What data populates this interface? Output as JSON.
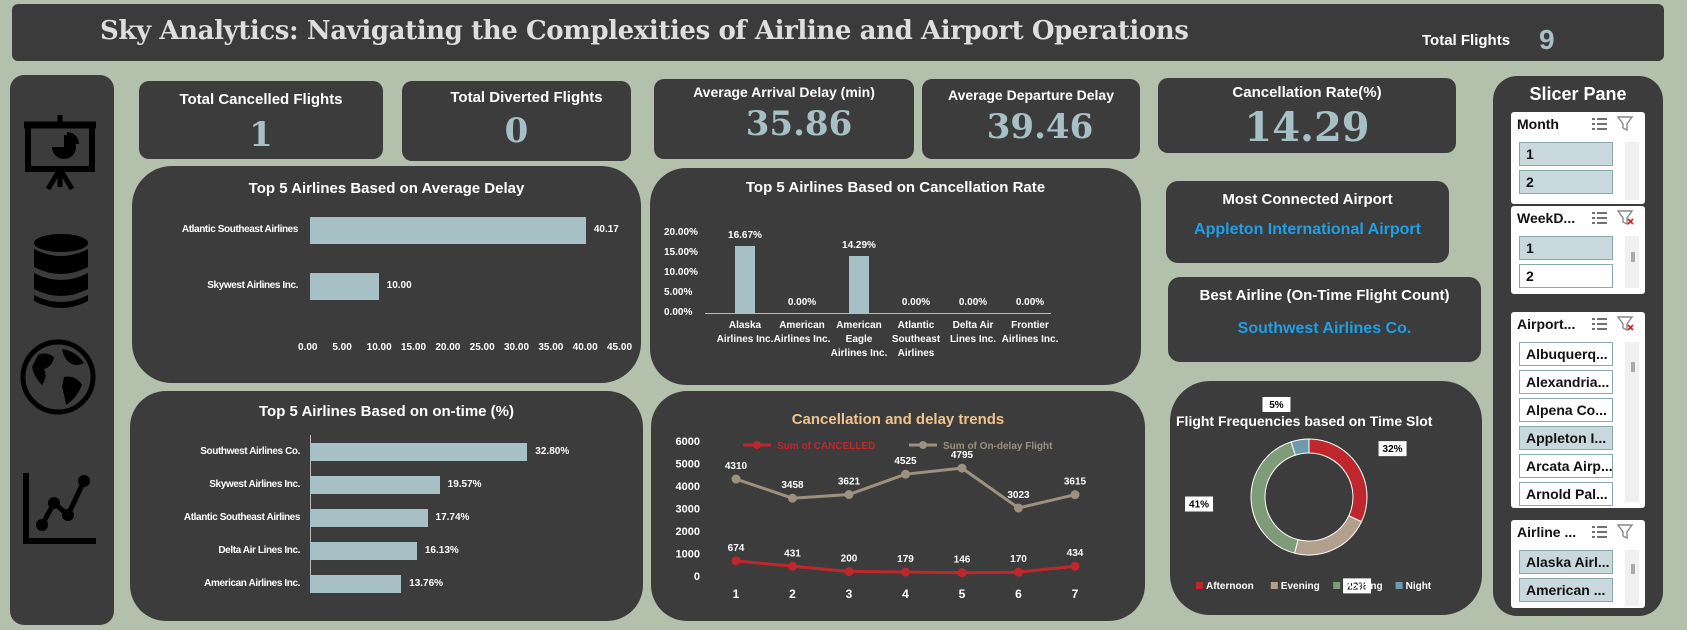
{
  "header": {
    "title": "Sky Analytics: Navigating the Complexities of Airline and Airport Operations",
    "total_flights_label": "Total Flights",
    "total_flights_value": "9"
  },
  "nav": {
    "icons": [
      "presentation-chart-icon",
      "database-icon",
      "globe-icon",
      "line-chart-icon"
    ]
  },
  "kpis": {
    "cancelled": {
      "label": "Total Cancelled Flights",
      "value": "1"
    },
    "diverted": {
      "label": "Total Diverted Flights",
      "value": "0"
    },
    "arrival_delay": {
      "label": "Average Arrival Delay (min)",
      "value": "35.86"
    },
    "departure_delay": {
      "label": "Average Departure Delay",
      "value": "39.46"
    },
    "cancellation_rate": {
      "label": "Cancellation Rate(%)",
      "value": "14.29"
    }
  },
  "cards": {
    "most_connected": {
      "label": "Most Connected Airport",
      "value": "Appleton International Airport"
    },
    "best_airline": {
      "label": "Best Airline (On-Time Flight Count)",
      "value": "Southwest Airlines Co."
    }
  },
  "slicer_pane": {
    "title": "Slicer Pane",
    "slicers": [
      {
        "title": "Month",
        "items": [
          "1",
          "2"
        ]
      },
      {
        "title": "WeekD...",
        "items": [
          "1",
          "2"
        ]
      },
      {
        "title": "Airport...",
        "items": [
          "Albuquerq...",
          "Alexandria...",
          "Alpena Co...",
          "Appleton I...",
          "Arcata Airp...",
          "Arnold Pal..."
        ]
      },
      {
        "title": "Airline ...",
        "items": [
          "Alaska Airl...",
          "American ..."
        ]
      }
    ]
  },
  "chart_data": [
    {
      "type": "bar",
      "orientation": "horizontal",
      "title": "Top 5 Airlines Based on Average Delay",
      "categories": [
        "Atlantic Southeast Airlines",
        "Skywest Airlines Inc."
      ],
      "values": [
        40.17,
        10.0
      ],
      "value_labels": [
        "40.17",
        "10.00"
      ],
      "xlim": [
        0,
        45
      ],
      "x_ticks": [
        "0.00",
        "5.00",
        "10.00",
        "15.00",
        "20.00",
        "25.00",
        "30.00",
        "35.00",
        "40.00",
        "45.00"
      ],
      "color": "#a6c0c6"
    },
    {
      "type": "bar",
      "title": "Top 5 Airlines Based on Cancellation Rate",
      "categories": [
        "Alaska Airlines Inc.",
        "American Airlines Inc.",
        "American Eagle Airlines Inc.",
        "Atlantic Southeast Airlines",
        "Delta Air Lines Inc.",
        "Frontier Airlines Inc."
      ],
      "values": [
        16.67,
        0,
        14.29,
        0,
        0,
        0
      ],
      "value_labels": [
        "16.67%",
        "0.00%",
        "14.29%",
        "0.00%",
        "0.00%",
        "0.00%"
      ],
      "ylim": [
        0,
        20
      ],
      "y_ticks": [
        "0.00%",
        "5.00%",
        "10.00%",
        "15.00%",
        "20.00%"
      ],
      "color": "#a6c0c6"
    },
    {
      "type": "bar",
      "orientation": "horizontal",
      "title": "Top 5 Airlines Based on on-time (%)",
      "categories": [
        "Southwest Airlines Co.",
        "Skywest Airlines Inc.",
        "Atlantic Southeast Airlines",
        "Delta Air Lines Inc.",
        "American Airlines Inc."
      ],
      "values": [
        32.8,
        19.57,
        17.74,
        16.13,
        13.76
      ],
      "value_labels": [
        "32.80%",
        "19.57%",
        "17.74%",
        "16.13%",
        "13.76%"
      ],
      "xlim": [
        0,
        40
      ],
      "color": "#a6c0c6"
    },
    {
      "type": "line",
      "title": "Cancellation and delay trends",
      "x": [
        "1",
        "2",
        "3",
        "4",
        "5",
        "6",
        "7"
      ],
      "ylim": [
        0,
        6000
      ],
      "y_ticks": [
        "0",
        "1000",
        "2000",
        "3000",
        "4000",
        "5000",
        "6000"
      ],
      "series": [
        {
          "name": "Sum of CANCELLED",
          "values": [
            674,
            431,
            200,
            179,
            146,
            170,
            434
          ],
          "color": "#c0272d"
        },
        {
          "name": "Sum of On-delay Flight",
          "values": [
            4310,
            3458,
            3621,
            4525,
            4795,
            3023,
            3615
          ],
          "color": "#9c907e"
        }
      ],
      "legend": "top"
    },
    {
      "type": "pie",
      "donut": true,
      "title": "Flight Frequencies based on Time Slot",
      "categories": [
        "Afternoon",
        "Evening",
        "Morning",
        "Night"
      ],
      "values": [
        32,
        22,
        41,
        5
      ],
      "value_labels": [
        "32%",
        "22%",
        "41%",
        "5%"
      ],
      "colors": [
        "#c0272d",
        "#b1a18c",
        "#7e9c77",
        "#6f9aac"
      ],
      "legend": "bottom"
    }
  ]
}
